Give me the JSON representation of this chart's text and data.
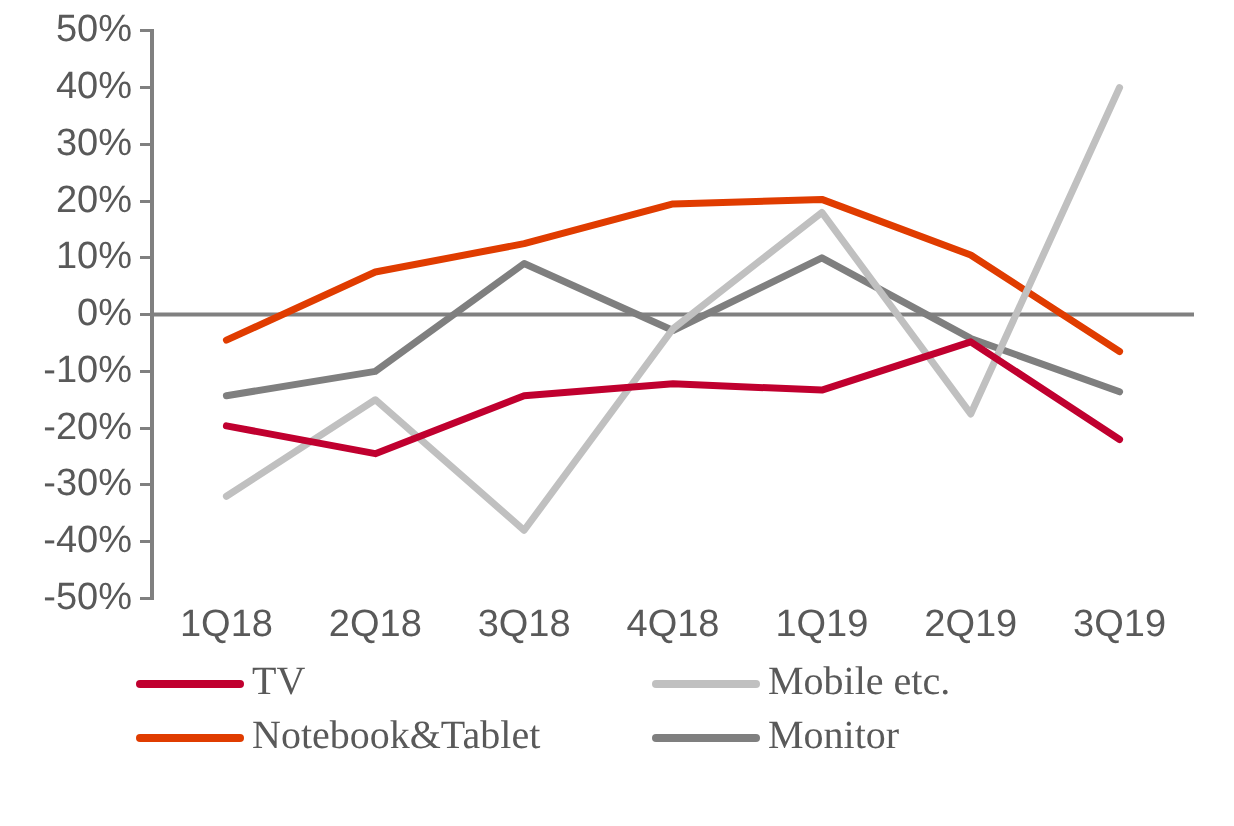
{
  "chart_data": {
    "type": "line",
    "categories": [
      "1Q18",
      "2Q18",
      "3Q18",
      "4Q18",
      "1Q19",
      "2Q19",
      "3Q19"
    ],
    "series": [
      {
        "name": "TV",
        "color": "#c0002f",
        "values": [
          -19.6,
          -24.5,
          -14.3,
          -12.2,
          -13.3,
          -4.8,
          -22
        ]
      },
      {
        "name": "Mobile etc.",
        "color": "#c0c0c0",
        "values": [
          -32,
          -15,
          -38,
          -2.5,
          18,
          -17.5,
          40
        ]
      },
      {
        "name": "Notebook&Tablet",
        "color": "#e03c00",
        "values": [
          -4.5,
          7.5,
          12.5,
          19.5,
          20.3,
          10.5,
          -6.5
        ]
      },
      {
        "name": "Monitor",
        "color": "#7f7f7f",
        "values": [
          -14.3,
          -10,
          9,
          -2.8,
          10,
          -4.2,
          -13.6
        ]
      }
    ],
    "ylim": [
      -50,
      50
    ],
    "yticks": [
      {
        "value": 50,
        "label": "50%"
      },
      {
        "value": 40,
        "label": "40%"
      },
      {
        "value": 30,
        "label": "30%"
      },
      {
        "value": 20,
        "label": "20%"
      },
      {
        "value": 10,
        "label": "10%"
      },
      {
        "value": 0,
        "label": "0%"
      },
      {
        "value": -10,
        "label": "-10%"
      },
      {
        "value": -20,
        "label": "-20%"
      },
      {
        "value": -30,
        "label": "-30%"
      },
      {
        "value": -40,
        "label": "-40%"
      },
      {
        "value": -50,
        "label": "-50%"
      }
    ],
    "ref_lines": [
      {
        "axis": "y",
        "value": 0,
        "color": "#808080"
      }
    ],
    "grid": false,
    "legend": "bottom",
    "marker": "none",
    "line_style": "solid"
  }
}
